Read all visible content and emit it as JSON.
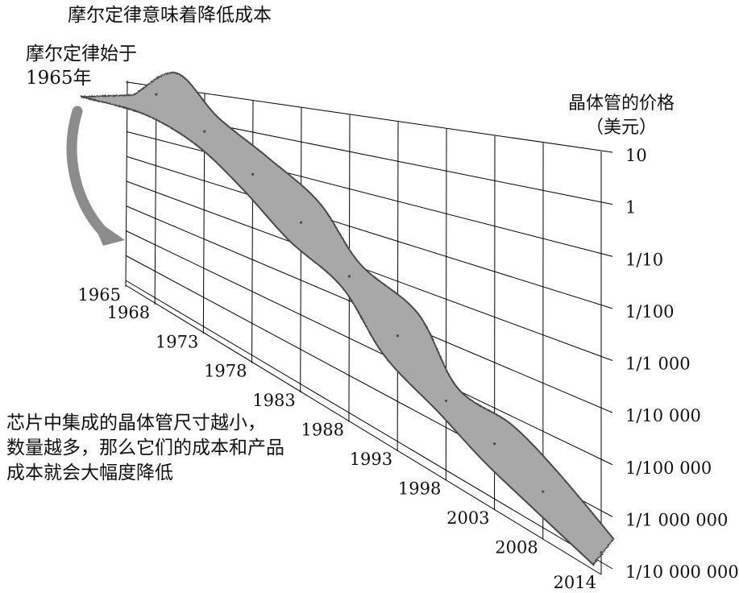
{
  "title": "摩尔定律意味着降低成本",
  "start_note": [
    "摩尔定律始于",
    "1965年"
  ],
  "y_axis_label": [
    "晶体管的价格",
    "（美元）"
  ],
  "note": [
    "芯片中集成的晶体管尺寸越小，",
    "数量越多，那么它们的成本和产品",
    "成本就会大幅度降低"
  ],
  "colors": {
    "band": "#a8a8a8",
    "band_edge": "#4a4a4a",
    "arrow": "#8c8c8c",
    "grid": "#000000"
  },
  "chart_data": {
    "type": "area",
    "title": "摩尔定律意味着降低成本",
    "xlabel": "",
    "ylabel": "晶体管的价格（美元）",
    "y_scale": "log",
    "x_ticks": [
      "1965",
      "1968",
      "1973",
      "1978",
      "1983",
      "1988",
      "1993",
      "1998",
      "2003",
      "2008",
      "2014"
    ],
    "y_ticks": [
      "10",
      "1",
      "1/10",
      "1/100",
      "1/1 000",
      "1/10 000",
      "1/100 000",
      "1/1 000 000",
      "1/10 000 000"
    ],
    "series": [
      {
        "x": [
          "1965",
          "1968",
          "1973",
          "1978",
          "1983",
          "1988",
          "1993",
          "1998",
          "2003",
          "2008",
          "2014"
        ],
        "values": [
          10,
          5,
          0.5,
          0.05,
          0.005,
          0.0005,
          5e-05,
          5e-06,
          2e-06,
          7e-07,
          2e-07
        ]
      }
    ]
  }
}
